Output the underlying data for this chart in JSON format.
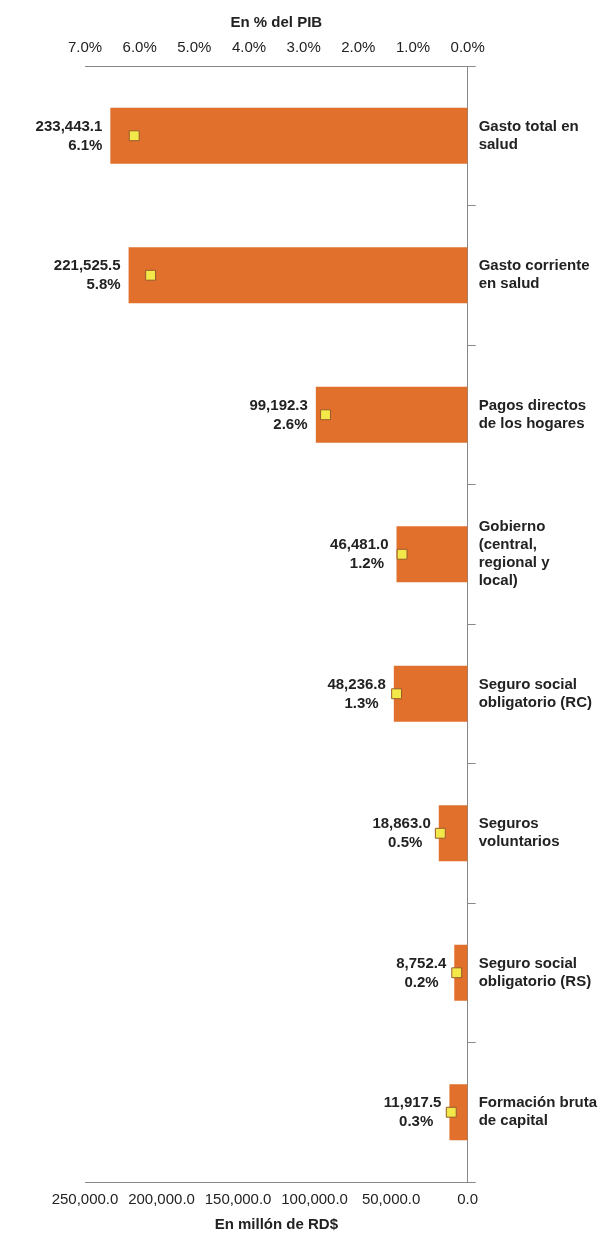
{
  "chart_data": {
    "type": "bar",
    "orientation": "horizontal",
    "xlabel": "En millón de RD$",
    "x2label": "En % del PIB",
    "categories": [
      "Gasto total en salud",
      "Gasto corriente en salud",
      "Pagos directos de los hogares",
      "Gobierno (central, regional y local)",
      "Seguro social obligatorio (RC)",
      "Seguros voluntarios",
      "Seguro social obligatorio (RS)",
      "Formación bruta de capital"
    ],
    "xlim": [
      250000,
      0
    ],
    "xticks": [
      {
        "value": 250000,
        "label": "250,000.0"
      },
      {
        "value": 200000,
        "label": "200,000.0"
      },
      {
        "value": 150000,
        "label": "150,000.0"
      },
      {
        "value": 100000,
        "label": "100,000.0"
      },
      {
        "value": 50000,
        "label": "50,000.0"
      },
      {
        "value": 0,
        "label": "0.0"
      }
    ],
    "x2lim": [
      7,
      0
    ],
    "x2ticks": [
      {
        "value": 7,
        "label": "7.0%"
      },
      {
        "value": 6,
        "label": "6.0%"
      },
      {
        "value": 5,
        "label": "5.0%"
      },
      {
        "value": 4,
        "label": "4.0%"
      },
      {
        "value": 3,
        "label": "3.0%"
      },
      {
        "value": 2,
        "label": "2.0%"
      },
      {
        "value": 1,
        "label": "1.0%"
      },
      {
        "value": 0,
        "label": "0.0%"
      }
    ],
    "series": [
      {
        "color": "#e0702c",
        "values": [
          233443.1,
          221525.5,
          99192.3,
          46481.0,
          48236.8,
          18863.0,
          8752.4,
          11917.5
        ],
        "value_labels": [
          "233,443.1",
          "221,525.5",
          "99,192.3",
          "46,481.0",
          "48,236.8",
          "18,863.0",
          "8,752.4",
          "11,917.5"
        ]
      },
      {
        "type": "scatter",
        "axis": "x2",
        "marker": "square",
        "color": "#f2e84a",
        "values": [
          6.1,
          5.8,
          2.6,
          1.2,
          1.3,
          0.5,
          0.2,
          0.3
        ],
        "value_labels": [
          "6.1%",
          "5.8%",
          "2.6%",
          "1.2%",
          "1.3%",
          "0.5%",
          "0.2%",
          "0.3%"
        ]
      }
    ]
  }
}
